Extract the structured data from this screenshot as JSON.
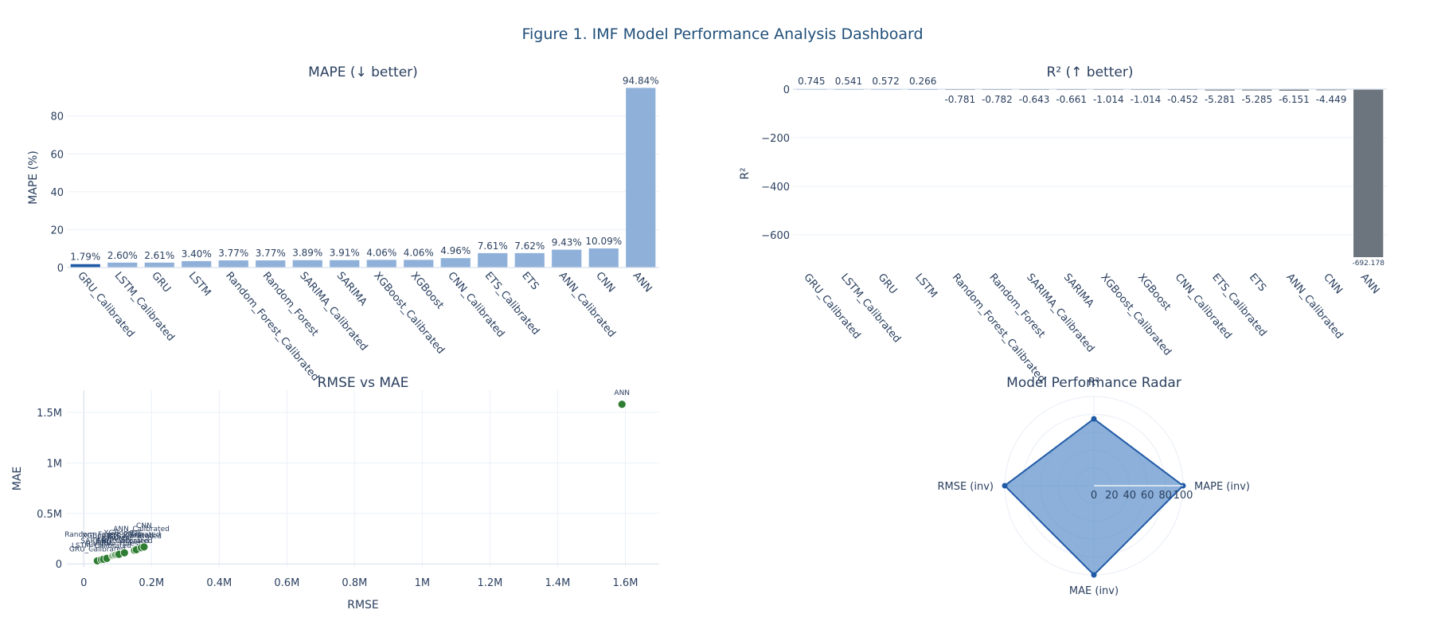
{
  "figure": {
    "title": "Figure 1. IMF Model Performance Analysis Dashboard"
  },
  "chart_data": [
    {
      "id": "mape",
      "type": "bar",
      "title": "MAPE (↓ better)",
      "ylabel": "MAPE (%)",
      "xlabel": "",
      "ylim": [
        0,
        95
      ],
      "yticks": [
        0,
        20,
        40,
        60,
        80
      ],
      "categories": [
        "GRU_Calibrated",
        "LSTM_Calibrated",
        "GRU",
        "LSTM",
        "Random_Forest_Calibrated",
        "Random_Forest",
        "SARIMA_Calibrated",
        "SARIMA",
        "XGBoost_Calibrated",
        "XGBoost",
        "CNN_Calibrated",
        "ETS_Calibrated",
        "ETS",
        "ANN_Calibrated",
        "CNN",
        "ANN"
      ],
      "values": [
        1.79,
        2.6,
        2.61,
        3.4,
        3.77,
        3.77,
        3.89,
        3.91,
        4.06,
        4.06,
        4.96,
        7.61,
        7.62,
        9.43,
        10.09,
        94.84
      ],
      "labels": [
        "1.79%",
        "2.60%",
        "2.61%",
        "3.40%",
        "3.77%",
        "3.77%",
        "3.89%",
        "3.91%",
        "4.06%",
        "4.06%",
        "4.96%",
        "7.61%",
        "7.62%",
        "9.43%",
        "10.09%",
        "94.84%"
      ],
      "highlight_index": 0,
      "colors": {
        "bar": "#8fb1d9",
        "highlight": "#1f5aa6"
      },
      "grid": true
    },
    {
      "id": "r2",
      "type": "bar",
      "title": "R² (↑ better)",
      "ylabel": "R²",
      "xlabel": "",
      "ylim": [
        -692.178,
        0
      ],
      "yticks": [
        0,
        -200,
        -400,
        -600
      ],
      "ytick_labels": [
        "0",
        "−200",
        "−400",
        "−600"
      ],
      "categories": [
        "GRU_Calibrated",
        "LSTM_Calibrated",
        "GRU",
        "LSTM",
        "Random_Forest_Calibrated",
        "Random_Forest",
        "SARIMA_Calibrated",
        "SARIMA",
        "XGBoost_Calibrated",
        "XGBoost",
        "CNN_Calibrated",
        "ETS_Calibrated",
        "ETS",
        "ANN_Calibrated",
        "CNN",
        "ANN"
      ],
      "values": [
        0.745,
        0.541,
        0.572,
        0.266,
        -0.781,
        -0.782,
        -0.643,
        -0.661,
        -1.014,
        -1.014,
        -0.452,
        -5.281,
        -5.285,
        -6.151,
        -4.449,
        -692.178
      ],
      "labels": [
        "0.745",
        "0.541",
        "0.572",
        "0.266",
        "-0.781",
        "-0.782",
        "-0.643",
        "-0.661",
        "-1.014",
        "-1.014",
        "-0.452",
        "-5.281",
        "-5.285",
        "-6.151",
        "-4.449",
        "-692.178"
      ],
      "colors": {
        "bar": "#6c757d",
        "positive": "#5b8fc9"
      },
      "grid": true
    },
    {
      "id": "scatter",
      "type": "scatter",
      "title": "RMSE vs MAE",
      "xlabel": "RMSE",
      "ylabel": "MAE",
      "xlim": [
        -50000,
        1700000
      ],
      "ylim": [
        -30000,
        1720000
      ],
      "xticks": [
        0,
        200000,
        400000,
        600000,
        800000,
        1000000,
        1200000,
        1400000,
        1600000
      ],
      "xtick_labels": [
        "0",
        "0.2M",
        "0.4M",
        "0.6M",
        "0.8M",
        "1M",
        "1.2M",
        "1.4M",
        "1.6M"
      ],
      "yticks": [
        0,
        500000,
        1000000,
        1500000
      ],
      "ytick_labels": [
        "0",
        "0.5M",
        "1M",
        "1.5M"
      ],
      "points": [
        {
          "name": "GRU_Calibrated",
          "x": 40000,
          "y": 30000
        },
        {
          "name": "LSTM_Calibrated",
          "x": 52000,
          "y": 42000
        },
        {
          "name": "GRU",
          "x": 58000,
          "y": 46000
        },
        {
          "name": "LSTM",
          "x": 68000,
          "y": 55000
        },
        {
          "name": "Random_Forest_Calibrated",
          "x": 85000,
          "y": 80000
        },
        {
          "name": "Random_Forest",
          "x": 88000,
          "y": 84000
        },
        {
          "name": "SARIMA_Calibrated",
          "x": 92000,
          "y": 88000
        },
        {
          "name": "SARIMA",
          "x": 95000,
          "y": 90000
        },
        {
          "name": "XGBoost_Calibrated",
          "x": 100000,
          "y": 92000
        },
        {
          "name": "XGBoost",
          "x": 104000,
          "y": 95000
        },
        {
          "name": "CNN_Calibrated",
          "x": 120000,
          "y": 110000
        },
        {
          "name": "ETS_Calibrated",
          "x": 150000,
          "y": 135000
        },
        {
          "name": "ETS",
          "x": 155000,
          "y": 140000
        },
        {
          "name": "ANN_Calibrated",
          "x": 170000,
          "y": 160000
        },
        {
          "name": "CNN",
          "x": 178000,
          "y": 168000
        },
        {
          "name": "ANN",
          "x": 1590000,
          "y": 1580000
        }
      ],
      "colors": {
        "marker": "#2e7d32"
      },
      "grid": true
    },
    {
      "id": "radar",
      "type": "radar",
      "title": "Model Performance Radar",
      "axes": [
        "R²",
        "MAPE (inv)",
        "MAE (inv)",
        "RMSE (inv)"
      ],
      "range": [
        0,
        100
      ],
      "radial_ticks": [
        0,
        20,
        40,
        60,
        80,
        100
      ],
      "values": [
        75,
        100,
        100,
        100
      ],
      "colors": {
        "line": "#1f5aa6",
        "fill": "#5b8fc9"
      }
    }
  ]
}
